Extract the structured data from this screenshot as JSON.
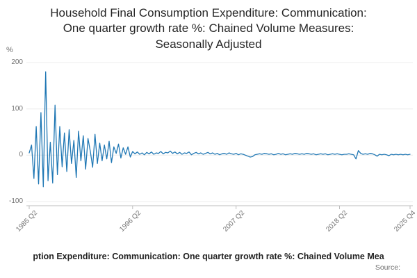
{
  "title": {
    "line1": "Household Final Consumption Expenditure: Communication:",
    "line2": "One quarter growth rate %: Chained Volume Measures:",
    "line3": "Seasonally Adjusted"
  },
  "y_axis": {
    "unit": "%",
    "ticks": [
      "200",
      "100",
      "0",
      "-100"
    ]
  },
  "x_axis": {
    "ticks": [
      "1985 Q2",
      "1996 Q2",
      "2007 Q2",
      "2018 Q2",
      "2025 Q4"
    ]
  },
  "footer": {
    "caption_visible": "ption Expenditure: Communication: One quarter growth rate %: Chained Volume Mea",
    "source_label": "Source:"
  },
  "chart_data": {
    "type": "line",
    "title": "Household Final Consumption Expenditure: Communication: One quarter growth rate %: Chained Volume Measures: Seasonally Adjusted",
    "ylabel": "%",
    "ylim": [
      -100,
      200
    ],
    "y_ticks": [
      200,
      100,
      0,
      -100
    ],
    "x_start": "1985 Q2",
    "x_end": "2025 Q4",
    "frequency": "quarterly",
    "x_tick_labels": [
      "1985 Q2",
      "1996 Q2",
      "2007 Q2",
      "2018 Q2",
      "2025 Q4"
    ],
    "x_tick_indices": [
      0,
      44,
      88,
      132,
      162
    ],
    "grid": "horizontal",
    "legend": "none",
    "line_color": "#1f77b4",
    "values": [
      5,
      22,
      -50,
      62,
      -62,
      92,
      -68,
      180,
      -55,
      28,
      -60,
      108,
      -42,
      62,
      -25,
      48,
      -35,
      55,
      -18,
      32,
      -48,
      52,
      -12,
      42,
      -30,
      36,
      8,
      -26,
      45,
      -18,
      26,
      -12,
      22,
      -8,
      30,
      -16,
      18,
      4,
      24,
      -6,
      16,
      2,
      18,
      -4,
      8,
      3,
      7,
      2,
      5,
      1,
      6,
      3,
      7,
      2,
      5,
      4,
      8,
      3,
      6,
      5,
      9,
      4,
      7,
      3,
      6,
      2,
      5,
      4,
      7,
      1,
      4,
      6,
      3,
      5,
      2,
      4,
      6,
      3,
      5,
      2,
      4,
      1,
      3,
      4,
      2,
      5,
      3,
      2,
      4,
      1,
      3,
      2,
      0,
      -2,
      -4,
      -3,
      1,
      2,
      3,
      2,
      4,
      3,
      2,
      3,
      1,
      2,
      4,
      2,
      3,
      1,
      2,
      3,
      2,
      4,
      3,
      2,
      3,
      2,
      4,
      3,
      2,
      3,
      1,
      2,
      3,
      2,
      3,
      1,
      2,
      3,
      2,
      3,
      2,
      1,
      2,
      2,
      3,
      2,
      1,
      -8,
      10,
      4,
      2,
      3,
      2,
      4,
      3,
      1,
      -2,
      2,
      1,
      2,
      1,
      -1,
      2,
      1,
      2,
      1,
      2,
      1,
      2,
      1,
      2
    ]
  }
}
